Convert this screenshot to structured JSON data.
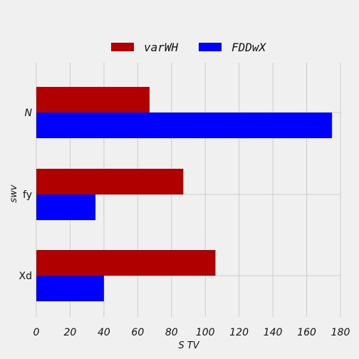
{
  "chart_data": {
    "type": "bar",
    "orientation": "horizontal",
    "categories": [
      "N",
      "fy",
      "Xd"
    ],
    "series": [
      {
        "name": "varWH",
        "color": "#b00000",
        "values": [
          67,
          87,
          106
        ]
      },
      {
        "name": "FDDwX",
        "color": "#0000ff",
        "values": [
          175,
          35,
          40
        ]
      }
    ],
    "xlabel": "S TV",
    "ylabel": "swv",
    "xlim": [
      0,
      180
    ],
    "xticks": [
      0,
      20,
      40,
      60,
      80,
      100,
      120,
      140,
      160,
      180
    ],
    "grid": true,
    "legend_position": "top-center"
  }
}
